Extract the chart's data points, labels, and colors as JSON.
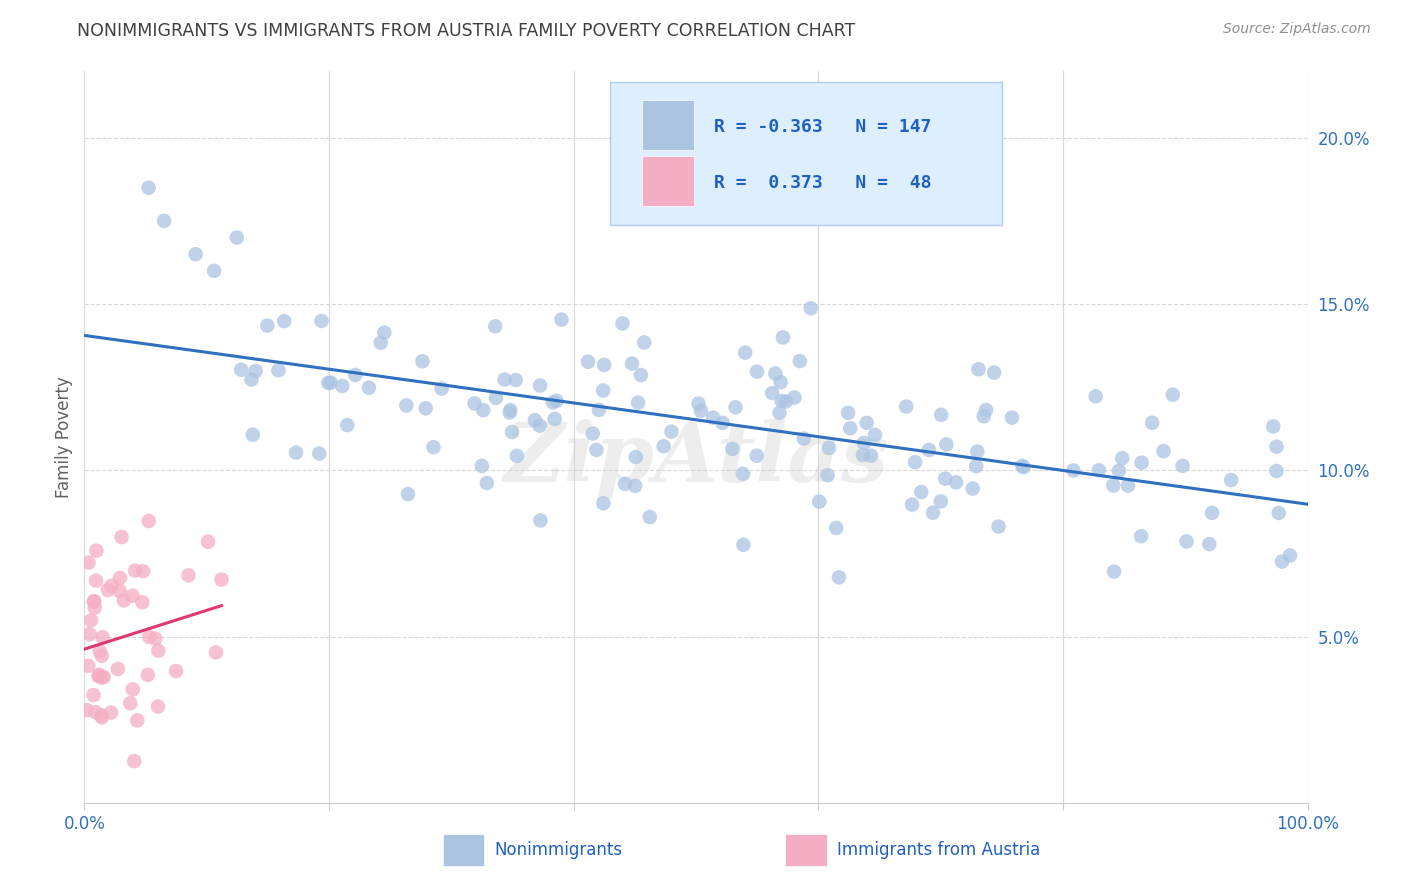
{
  "title": "NONIMMIGRANTS VS IMMIGRANTS FROM AUSTRIA FAMILY POVERTY CORRELATION CHART",
  "source": "Source: ZipAtlas.com",
  "ylabel": "Family Poverty",
  "xlim": [
    0,
    100
  ],
  "ylim": [
    0,
    22
  ],
  "nonimm_R": -0.363,
  "nonimm_N": 147,
  "imm_R": 0.373,
  "imm_N": 48,
  "nonimm_color": "#aac4e2",
  "imm_color": "#f4aec4",
  "nonimm_line_color": "#3070c0",
  "imm_line_color": "#e03870",
  "background_color": "#ffffff",
  "grid_color": "#d8d8d8",
  "title_color": "#404040",
  "legend_box_facecolor": "#ddeeff",
  "legend_box_edgecolor": "#b0ccee",
  "legend_text_color": "#2060c0",
  "source_color": "#909090",
  "watermark": "ZipAtlas",
  "ylabel_color": "#606060",
  "tick_color": "#3070c0"
}
